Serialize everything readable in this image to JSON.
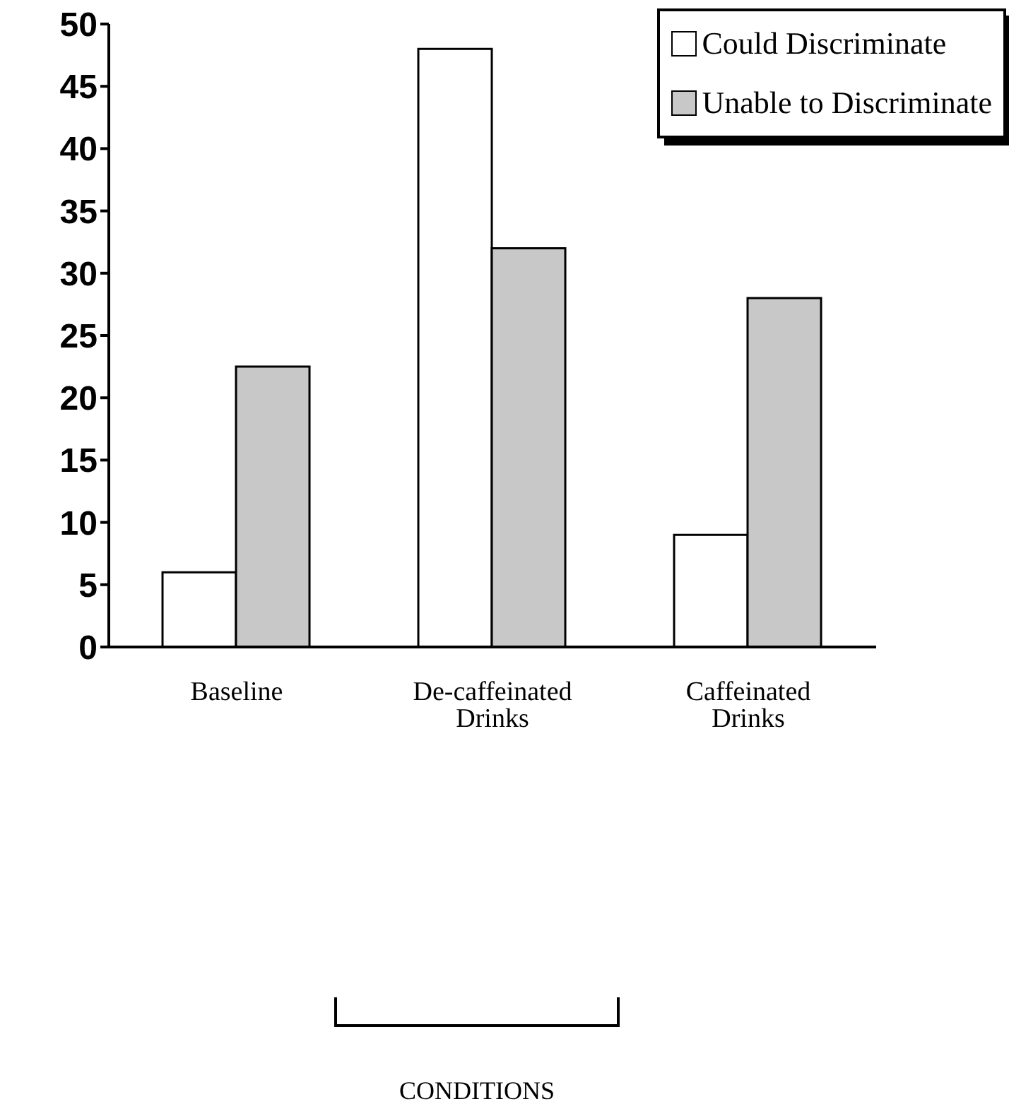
{
  "chart_data": {
    "type": "bar",
    "annotations": [
      "CONDITIONS"
    ],
    "categories": [
      "Baseline",
      "De-caffeinated Drinks",
      "Caffeinated Drinks"
    ],
    "series": [
      {
        "name": "Could Discriminate",
        "color": "#ffffff",
        "values": [
          6,
          48,
          9
        ]
      },
      {
        "name": "Unable to Discriminate",
        "color": "#c8c8c8",
        "values": [
          22.5,
          32,
          28
        ]
      }
    ],
    "ylim": [
      0,
      50
    ],
    "yticks": [
      0,
      5,
      10,
      15,
      20,
      25,
      30,
      35,
      40,
      45,
      50
    ],
    "legend": "top right"
  }
}
